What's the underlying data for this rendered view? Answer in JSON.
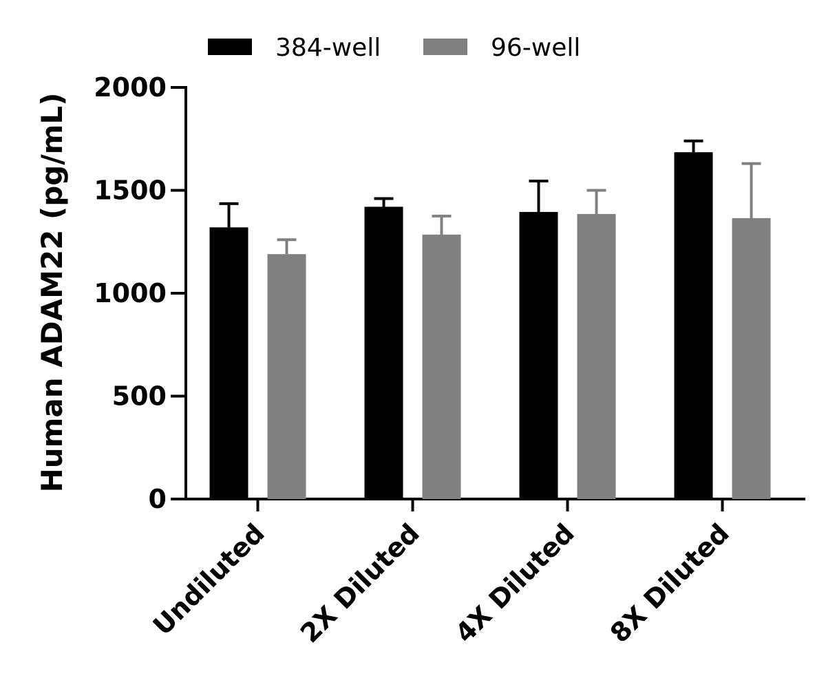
{
  "chart_data": {
    "type": "bar",
    "title": "",
    "xlabel": "",
    "ylabel": "Human ADAM22 (pg/mL)",
    "categories": [
      "Undiluted",
      "2X Diluted",
      "4X Diluted",
      "8X Diluted"
    ],
    "series": [
      {
        "name": "384-well",
        "color": "#000000",
        "values": [
          1320,
          1420,
          1395,
          1685
        ],
        "errors": [
          115,
          40,
          150,
          55
        ]
      },
      {
        "name": "96-well",
        "color": "#808080",
        "values": [
          1190,
          1285,
          1385,
          1365
        ],
        "errors": [
          70,
          90,
          115,
          265
        ]
      }
    ],
    "ylim": [
      0,
      2000
    ],
    "yticks": [
      "0",
      "500",
      "1000",
      "1500",
      "2000"
    ],
    "grid": false,
    "legend_position": "top"
  }
}
